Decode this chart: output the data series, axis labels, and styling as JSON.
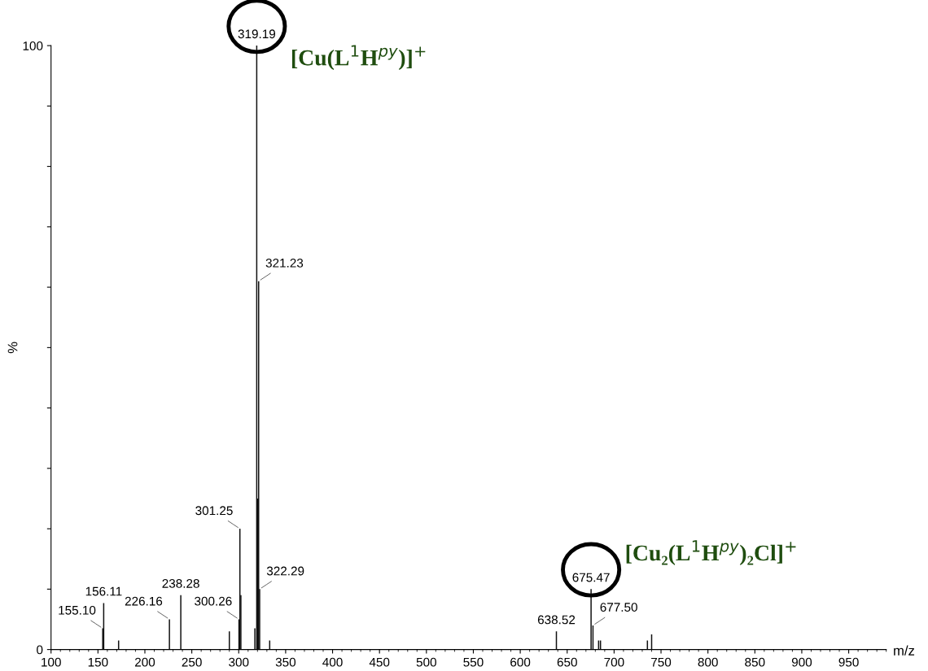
{
  "chart_data": {
    "type": "bar",
    "xlabel": "m/z",
    "ylabel": "%",
    "x": [
      155.1,
      156.11,
      172.0,
      226.16,
      238.28,
      290.0,
      300.26,
      301.25,
      302.3,
      317.2,
      319.19,
      320.2,
      321.23,
      322.29,
      333.0,
      638.52,
      675.47,
      677.5,
      683.5,
      685.5,
      735.5,
      740.0
    ],
    "values": [
      3.5,
      7.7,
      1.5,
      5,
      9,
      3,
      5,
      20,
      9,
      3.5,
      100,
      25,
      61,
      10,
      1.5,
      3,
      10,
      4,
      1.5,
      1.5,
      1.5,
      2.5
    ],
    "color": "#111111",
    "xlim": [
      100,
      990
    ],
    "xticks": [
      100,
      150,
      200,
      250,
      300,
      350,
      400,
      450,
      500,
      550,
      600,
      650,
      700,
      750,
      800,
      850,
      900,
      950
    ],
    "ylim": [
      0,
      100
    ],
    "yticks": [
      0,
      {
        "value": 10,
        "label": null
      },
      {
        "value": 20,
        "label": null
      },
      {
        "value": 30,
        "label": null
      },
      {
        "value": 40,
        "label": null
      },
      {
        "value": 50,
        "label": null
      },
      {
        "value": 60,
        "label": null
      },
      {
        "value": 70,
        "label": null
      },
      {
        "value": 80,
        "label": null
      },
      {
        "value": 90,
        "label": null
      },
      100
    ],
    "annotations": [
      {
        "text": "155.10",
        "x": 155.1,
        "y": 3.5
      },
      {
        "text": "156.11",
        "x": 156.11,
        "y": 7.7
      },
      {
        "text": "226.16",
        "x": 226.16,
        "y": 5
      },
      {
        "text": "238.28",
        "x": 238.28,
        "y": 9
      },
      {
        "text": "300.26",
        "x": 300.26,
        "y": 5
      },
      {
        "text": "301.25",
        "x": 301.25,
        "y": 20
      },
      {
        "text": "319.19",
        "x": 319.19,
        "y": 100
      },
      {
        "text": "321.23",
        "x": 321.23,
        "y": 61
      },
      {
        "text": "322.29",
        "x": 322.29,
        "y": 10
      },
      {
        "text": "638.52",
        "x": 638.52,
        "y": 3
      },
      {
        "text": "675.47",
        "x": 675.47,
        "y": 10
      },
      {
        "text": "677.50",
        "x": 677.5,
        "y": 4
      },
      {
        "text": "[Cu(L$^{1}$H$^{py}$)]$^{+}$",
        "x": 319.19,
        "y": 100
      },
      {
        "text": "[Cu₂(L$^{1}$H$^{py}$)₂Cl]$^{+}$",
        "x": 675.47,
        "y": 10
      }
    ],
    "grid": false,
    "legend": false
  }
}
